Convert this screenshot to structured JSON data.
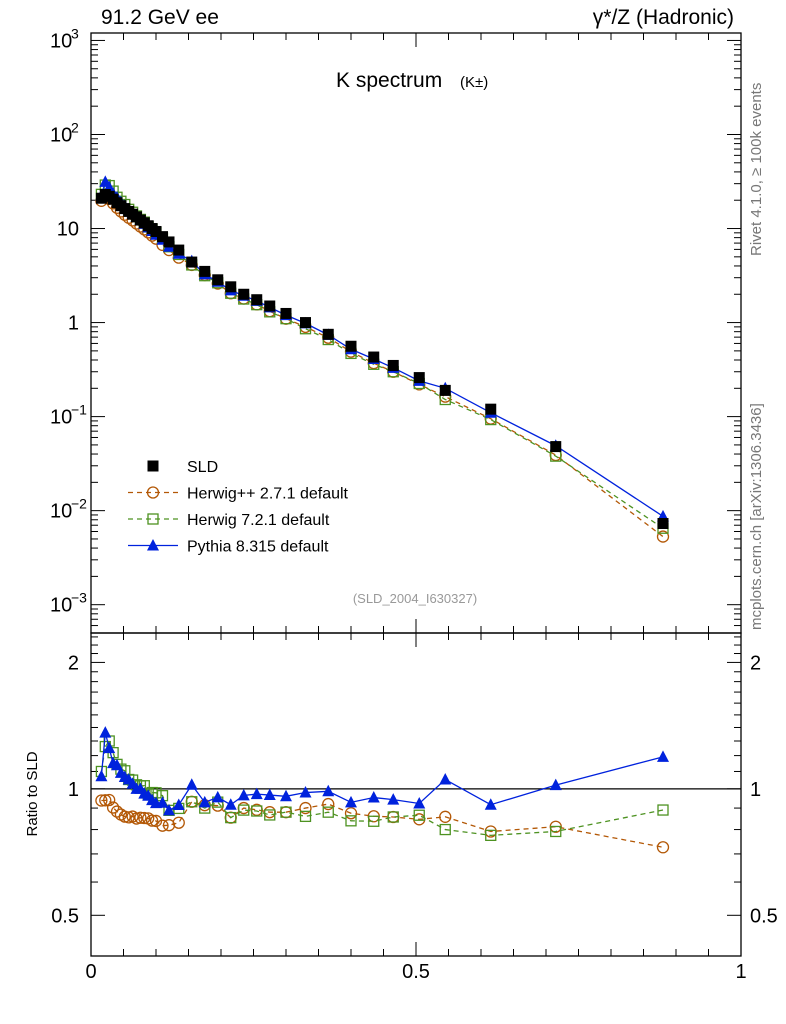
{
  "header": {
    "left": "91.2 GeV ee",
    "right": "γ*/Z (Hadronic)"
  },
  "side_labels": {
    "rivet": "Rivet 4.1.0, ≥ 100k events",
    "mcplots": "mcplots.cern.ch [arXiv:1306.3436]"
  },
  "chart_data": {
    "type": "line",
    "title": "K spectrum",
    "title_sub": "(K±)",
    "analysis_id": "(SLD_2004_I630327)",
    "xlabel": "",
    "ylabel_ratio": "Ratio to SLD",
    "xlim": [
      0,
      1
    ],
    "ylim_main": [
      0.0005,
      1200
    ],
    "ylim_ratio": [
      0.4,
      2.35
    ],
    "yscale_main": "log",
    "yscale_ratio": "log",
    "x_ticks": [
      0,
      0.5,
      1
    ],
    "x_tick_labels": [
      "0",
      "0.5",
      "1"
    ],
    "y_ticks_main": [
      0.001,
      0.01,
      0.1,
      1,
      10,
      100,
      1000
    ],
    "y_tick_labels_main": [
      {
        "base": "10",
        "exp": "−3"
      },
      {
        "base": "10",
        "exp": "−2"
      },
      {
        "base": "10",
        "exp": "−1"
      },
      {
        "base": "1",
        "exp": ""
      },
      {
        "base": "10",
        "exp": ""
      },
      {
        "base": "10",
        "exp": "2"
      },
      {
        "base": "10",
        "exp": "3"
      }
    ],
    "y_ticks_ratio": [
      0.5,
      1,
      2
    ],
    "y_tick_labels_ratio": [
      "0.5",
      "1",
      "2"
    ],
    "legend_position": "bottom-left",
    "x": [
      0.016,
      0.022,
      0.028,
      0.034,
      0.04,
      0.046,
      0.052,
      0.058,
      0.064,
      0.07,
      0.076,
      0.082,
      0.088,
      0.094,
      0.1,
      0.11,
      0.12,
      0.135,
      0.155,
      0.175,
      0.195,
      0.215,
      0.235,
      0.255,
      0.275,
      0.3,
      0.33,
      0.365,
      0.4,
      0.435,
      0.465,
      0.505,
      0.545,
      0.615,
      0.715,
      0.88
    ],
    "series": [
      {
        "name": "SLD",
        "color": "#000000",
        "marker": "filled-square",
        "dash": "",
        "values": [
          21.0,
          23.0,
          22.0,
          20.5,
          18.8,
          17.5,
          16.3,
          15.2,
          14.2,
          13.3,
          12.3,
          11.5,
          10.7,
          10.0,
          9.3,
          8.2,
          7.2,
          5.9,
          4.4,
          3.5,
          2.85,
          2.4,
          2.0,
          1.75,
          1.5,
          1.25,
          1.0,
          0.75,
          0.56,
          0.43,
          0.35,
          0.26,
          0.19,
          0.12,
          0.048,
          0.0073
        ]
      },
      {
        "name": "Herwig++ 2.7.1 default",
        "color": "#b35806",
        "marker": "open-circle",
        "dash": "5,4",
        "values": [
          19.7,
          21.6,
          20.7,
          18.5,
          16.6,
          15.2,
          14.0,
          13.0,
          12.2,
          11.3,
          10.5,
          9.8,
          9.1,
          8.4,
          7.8,
          6.7,
          5.9,
          4.9,
          4.1,
          3.2,
          2.6,
          2.05,
          1.8,
          1.56,
          1.32,
          1.1,
          0.9,
          0.69,
          0.49,
          0.37,
          0.3,
          0.22,
          0.163,
          0.095,
          0.039,
          0.0053
        ]
      },
      {
        "name": "Herwig 7.2.1 default",
        "color": "#4d9221",
        "marker": "open-square",
        "dash": "5,4",
        "values": [
          23.1,
          29.0,
          28.6,
          25.0,
          21.5,
          19.5,
          18.0,
          16.0,
          14.9,
          13.6,
          12.5,
          11.7,
          10.4,
          9.8,
          9.1,
          7.9,
          6.4,
          5.3,
          4.1,
          3.15,
          2.65,
          2.05,
          1.78,
          1.55,
          1.3,
          1.1,
          0.86,
          0.66,
          0.47,
          0.36,
          0.3,
          0.225,
          0.152,
          0.093,
          0.038,
          0.0065
        ]
      },
      {
        "name": "Pythia 8.315 default",
        "color": "#0022dd",
        "marker": "filled-triangle",
        "dash": "",
        "values": [
          22.5,
          31.3,
          27.5,
          23.6,
          21.4,
          19.1,
          17.4,
          16.0,
          14.6,
          13.3,
          12.3,
          11.2,
          10.3,
          9.4,
          8.6,
          7.6,
          6.4,
          5.4,
          4.5,
          3.25,
          2.72,
          2.2,
          1.93,
          1.7,
          1.45,
          1.2,
          0.98,
          0.74,
          0.52,
          0.41,
          0.33,
          0.24,
          0.2,
          0.11,
          0.049,
          0.0087
        ]
      }
    ]
  }
}
